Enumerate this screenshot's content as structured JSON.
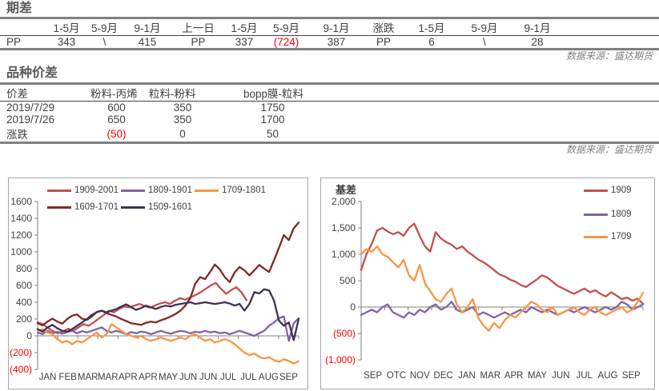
{
  "colors": {
    "negative": "#ff0000",
    "rule_gray": "#808080",
    "text_dark": "#404040",
    "title_gray": "#595959",
    "chart_border": "#a6a6a6"
  },
  "section_spread": {
    "title": "期差",
    "source": "数据来源：盛达期货",
    "header": [
      "",
      "1-5月",
      "5-9月",
      "9-1月",
      "上一日",
      "1-5月",
      "5-9月",
      "9-1月",
      "涨跌",
      "1-5月",
      "5-9月",
      "9-1月"
    ],
    "row": [
      "PP",
      "343",
      "\\",
      "415",
      "PP",
      "337",
      "(724)",
      "387",
      "PP",
      "6",
      "\\",
      "28"
    ]
  },
  "section_variety": {
    "title": "品种价差",
    "source": "数据来源：盛达期货",
    "header": [
      "价差",
      "粉料-丙烯",
      "粒料-粉料",
      "bopp膜-粒料"
    ],
    "rows": [
      [
        "2019/7/29",
        "600",
        "350",
        "1750"
      ],
      [
        "2019/7/26",
        "650",
        "350",
        "1700"
      ],
      [
        "涨跌",
        "(50)",
        "0",
        "50"
      ]
    ]
  },
  "chart_data": [
    {
      "type": "line",
      "title": "",
      "xlabel": "",
      "ylabel": "",
      "legend_position": "top",
      "grid": false,
      "ylim": [
        -400,
        1600
      ],
      "y_tick_values": [
        1600,
        1400,
        1200,
        1000,
        800,
        600,
        400,
        200,
        0,
        -200,
        -400
      ],
      "y_tick_labels": [
        "1600",
        "1400",
        "1200",
        "1000",
        "800",
        "600",
        "400",
        "200",
        "0",
        "(200)",
        "(400)"
      ],
      "x_labels": [
        "JAN",
        "FEB",
        "MAR",
        "MAR",
        "APR",
        "APR",
        "MAY",
        "JUN",
        "JUN",
        "JUL",
        "JUL",
        "AUG",
        "SEP"
      ],
      "series": [
        {
          "name": "1909-2001",
          "color": "#C0504D",
          "x_end": 0.8,
          "values": [
            160,
            140,
            95,
            55,
            30,
            55,
            85,
            60,
            100,
            140,
            120,
            160,
            205,
            250,
            300,
            280,
            320,
            350,
            340,
            360,
            380,
            355,
            335,
            360,
            385,
            400,
            380,
            420,
            450,
            430,
            460,
            485,
            520,
            560,
            600,
            630,
            560,
            500,
            545,
            580,
            520,
            425
          ]
        },
        {
          "name": "1809-1901",
          "color": "#8064A2",
          "x_end": 1,
          "values": [
            40,
            20,
            60,
            30,
            50,
            25,
            45,
            60,
            30,
            55,
            40,
            60,
            80,
            100,
            60,
            40,
            60,
            40,
            20,
            45,
            30,
            50,
            40,
            20,
            40,
            60,
            40,
            25,
            45,
            60,
            50,
            30,
            50,
            40,
            60,
            40,
            50,
            30,
            40,
            20,
            40,
            60,
            40,
            20,
            0,
            30,
            60,
            120,
            160,
            210,
            230,
            -60,
            150,
            210
          ]
        },
        {
          "name": "1709-1801",
          "color": "#F79646",
          "x_end": 1,
          "values": [
            60,
            80,
            40,
            20,
            -40,
            -80,
            -60,
            -100,
            -60,
            -80,
            -40,
            0,
            40,
            -20,
            20,
            140,
            100,
            60,
            20,
            0,
            -20,
            0,
            -40,
            -60,
            -40,
            -20,
            -40,
            -60,
            -40,
            -20,
            -40,
            0,
            20,
            -20,
            -60,
            -40,
            -80,
            -60,
            -40,
            -60,
            -100,
            -150,
            -200,
            -230,
            -210,
            -250,
            -270,
            -255,
            -290,
            -310,
            -280,
            -300,
            -330,
            -305
          ]
        },
        {
          "name": "1609-1701",
          "color": "#7E2A26",
          "x_end": 1,
          "values": [
            150,
            125,
            170,
            205,
            170,
            145,
            200,
            240,
            255,
            205,
            190,
            230,
            285,
            300,
            270,
            250,
            230,
            200,
            175,
            150,
            140,
            130,
            155,
            170,
            160,
            185,
            205,
            230,
            260,
            300,
            360,
            450,
            620,
            700,
            675,
            760,
            850,
            790,
            700,
            640,
            755,
            820,
            780,
            720,
            780,
            845,
            800,
            760,
            900,
            1050,
            1200,
            1140,
            1280,
            1350
          ]
        },
        {
          "name": "1509-1601",
          "color": "#403152",
          "x_end": 1,
          "values": [
            80,
            50,
            100,
            130,
            90,
            60,
            50,
            80,
            120,
            160,
            200,
            250,
            280,
            300,
            280,
            300,
            320,
            350,
            375,
            340,
            310,
            330,
            360,
            340,
            320,
            345,
            360,
            350,
            370,
            380,
            390,
            400,
            380,
            390,
            400,
            390,
            380,
            390,
            400,
            385,
            360,
            380,
            300,
            380,
            520,
            505,
            555,
            540,
            420,
            180,
            120,
            160,
            -50,
            200
          ]
        }
      ]
    },
    {
      "type": "line",
      "title": "基差",
      "xlabel": "",
      "ylabel": "",
      "legend_position": "right",
      "grid": false,
      "ylim": [
        -1000,
        2000
      ],
      "y_tick_values": [
        2000,
        1500,
        1000,
        500,
        0,
        -500,
        -1000
      ],
      "y_tick_labels": [
        "2,000",
        "1,500",
        "1,000",
        "500",
        "0",
        "(500)",
        "(1,000)"
      ],
      "x_labels": [
        "SEP",
        "OTC",
        "NOV",
        "DEC",
        "JAN",
        "MAR",
        "APR",
        "MAY",
        "JUN",
        "JUL",
        "AUG",
        "SEP"
      ],
      "series": [
        {
          "name": "1909",
          "color": "#C0504D",
          "x_end": 1,
          "values": [
            700,
            1000,
            1200,
            1450,
            1500,
            1430,
            1380,
            1420,
            1350,
            1500,
            1580,
            1350,
            1150,
            1050,
            1420,
            1300,
            1230,
            1180,
            1100,
            1150,
            1050,
            980,
            900,
            850,
            780,
            700,
            620,
            580,
            520,
            480,
            420,
            380,
            450,
            520,
            600,
            560,
            480,
            400,
            350,
            300,
            250,
            300,
            350,
            280,
            320,
            250,
            200,
            280,
            220,
            150,
            180,
            120,
            160,
            60
          ]
        },
        {
          "name": "1809",
          "color": "#8064A2",
          "x_end": 1,
          "values": [
            -150,
            -100,
            -50,
            -100,
            0,
            50,
            -100,
            -150,
            -200,
            -100,
            -150,
            -50,
            -100,
            0,
            50,
            -50,
            0,
            100,
            -50,
            -100,
            -50,
            0,
            -150,
            -100,
            -150,
            -200,
            -150,
            -100,
            -150,
            -100,
            -50,
            -100,
            0,
            -50,
            -100,
            -50,
            -100,
            -150,
            -100,
            -50,
            -100,
            -50,
            0,
            -50,
            -100,
            -50,
            0,
            -50,
            0,
            100,
            50,
            -50,
            0,
            50
          ]
        },
        {
          "name": "1709",
          "color": "#F79646",
          "x_end": 1,
          "values": [
            1000,
            1100,
            1050,
            1150,
            1000,
            950,
            850,
            750,
            900,
            600,
            500,
            800,
            450,
            300,
            150,
            100,
            250,
            350,
            50,
            -100,
            0,
            150,
            -200,
            -350,
            -450,
            -300,
            -400,
            -250,
            -150,
            -200,
            -100,
            0,
            100,
            50,
            -50,
            -100,
            0,
            -150,
            -100,
            -50,
            0,
            -100,
            -150,
            -50,
            0,
            -100,
            -150,
            -100,
            -50,
            0,
            -100,
            -50,
            100,
            270
          ]
        }
      ]
    }
  ]
}
